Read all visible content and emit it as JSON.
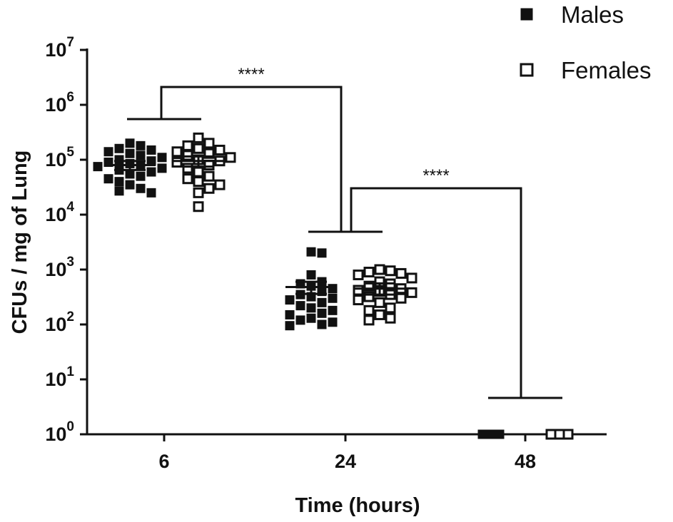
{
  "chart_data": {
    "type": "scatter",
    "title": "",
    "xlabel": "Time (hours)",
    "ylabel": "CFUs / mg of Lung",
    "yscale": "log",
    "ylim": [
      1,
      10000000
    ],
    "y_ticks": [
      {
        "base": "10",
        "exp": "0"
      },
      {
        "base": "10",
        "exp": "1"
      },
      {
        "base": "10",
        "exp": "2"
      },
      {
        "base": "10",
        "exp": "3"
      },
      {
        "base": "10",
        "exp": "4"
      },
      {
        "base": "10",
        "exp": "5"
      },
      {
        "base": "10",
        "exp": "6"
      },
      {
        "base": "10",
        "exp": "7"
      }
    ],
    "categories": [
      "6",
      "24",
      "48"
    ],
    "legend": {
      "position": "top-right"
    },
    "series": [
      {
        "name": "Males",
        "marker": "filled-square",
        "color": "#111111",
        "groups": [
          {
            "category": "6",
            "mean": 80000,
            "sem_low": 65000,
            "sem_high": 95000,
            "values": [
              200000,
              180000,
              160000,
              150000,
              140000,
              130000,
              120000,
              110000,
              100000,
              95000,
              90000,
              85000,
              80000,
              75000,
              70000,
              65000,
              60000,
              55000,
              50000,
              45000,
              40000,
              35000,
              30000,
              27000,
              25000
            ]
          },
          {
            "category": "24",
            "mean": 480,
            "sem_low": 360,
            "sem_high": 600,
            "values": [
              2100,
              2000,
              800,
              600,
              550,
              500,
              450,
              400,
              350,
              320,
              300,
              280,
              250,
              220,
              200,
              180,
              160,
              150,
              130,
              120,
              110,
              100,
              95
            ]
          },
          {
            "category": "48",
            "mean": 1,
            "sem_low": 1,
            "sem_high": 1,
            "values": [
              1,
              1,
              1
            ]
          }
        ]
      },
      {
        "name": "Females",
        "marker": "open-square",
        "color": "#111111",
        "groups": [
          {
            "category": "6",
            "mean": 95000,
            "sem_low": 75000,
            "sem_high": 115000,
            "values": [
              250000,
              200000,
              180000,
              160000,
              150000,
              140000,
              130000,
              120000,
              110000,
              100000,
              95000,
              90000,
              80000,
              70000,
              60000,
              50000,
              45000,
              40000,
              35000,
              30000,
              25000,
              14000
            ]
          },
          {
            "category": "24",
            "mean": 450,
            "sem_low": 350,
            "sem_high": 560,
            "values": [
              1000,
              950,
              900,
              850,
              800,
              700,
              600,
              550,
              500,
              450,
              420,
              400,
              380,
              350,
              320,
              300,
              280,
              250,
              200,
              180,
              150,
              130,
              120
            ]
          },
          {
            "category": "48",
            "mean": 1,
            "sem_low": 1,
            "sem_high": 1,
            "values": [
              1,
              1,
              1
            ]
          }
        ]
      }
    ],
    "annotations": [
      {
        "label": "****",
        "from": "6",
        "to": "24"
      },
      {
        "label": "****",
        "from": "24",
        "to": "48"
      }
    ]
  }
}
